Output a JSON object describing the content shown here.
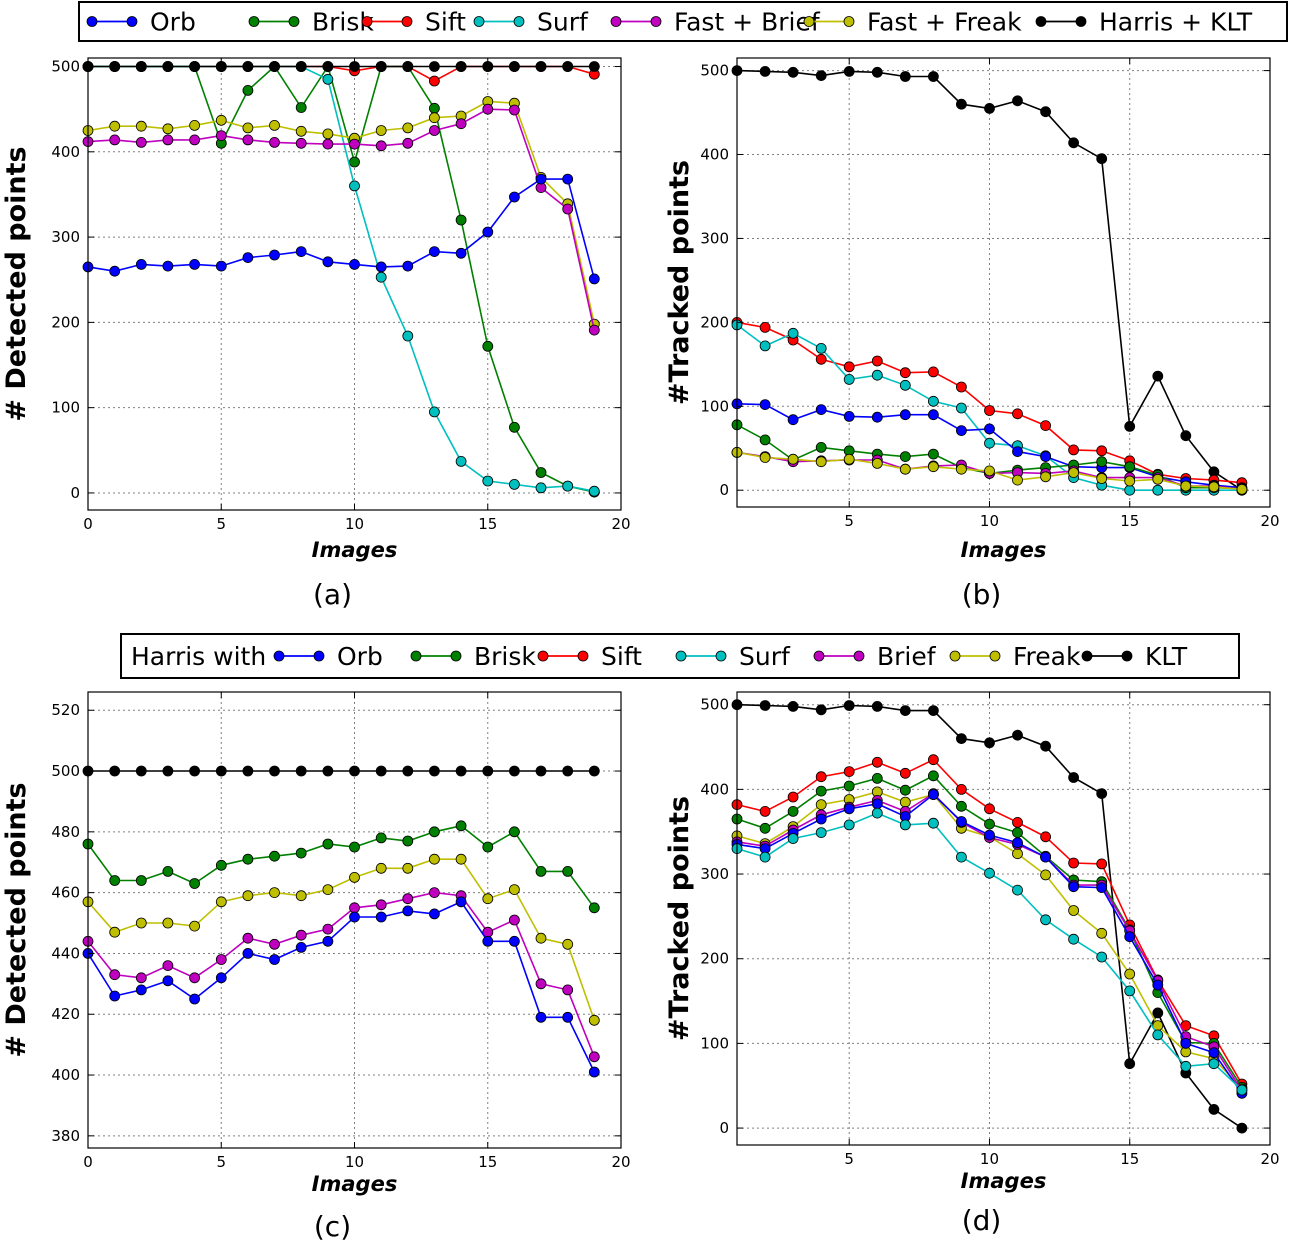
{
  "colors": {
    "Orb": "#0000ff",
    "Brisk": "#008000",
    "Sift": "#ff0000",
    "Surf": "#00bfbf",
    "Brief": "#bf00bf",
    "Freak": "#bfbf00",
    "KLT": "#000000"
  },
  "legend_top": {
    "entries": [
      {
        "label": "Orb",
        "color_key": "Orb"
      },
      {
        "label": "Brisk",
        "color_key": "Brisk"
      },
      {
        "label": "Sift",
        "color_key": "Sift"
      },
      {
        "label": "Surf",
        "color_key": "Surf"
      },
      {
        "label": "Fast + Brief",
        "color_key": "Brief"
      },
      {
        "label": "Fast + Freak",
        "color_key": "Freak"
      },
      {
        "label": "Harris + KLT",
        "color_key": "KLT"
      }
    ]
  },
  "legend_bottom": {
    "prefix": "Harris with",
    "entries": [
      {
        "label": "Orb",
        "color_key": "Orb"
      },
      {
        "label": "Brisk",
        "color_key": "Brisk"
      },
      {
        "label": "Sift",
        "color_key": "Sift"
      },
      {
        "label": "Surf",
        "color_key": "Surf"
      },
      {
        "label": "Brief",
        "color_key": "Brief"
      },
      {
        "label": "Freak",
        "color_key": "Freak"
      },
      {
        "label": "KLT",
        "color_key": "KLT"
      }
    ]
  },
  "chart_data": [
    {
      "id": "a",
      "type": "line",
      "caption": "(a)",
      "xlabel": "Images",
      "ylabel": "# Detected points",
      "xlim": [
        0,
        20
      ],
      "ylim": [
        -20,
        510
      ],
      "xticks": [
        0,
        5,
        10,
        15,
        20
      ],
      "yticks": [
        0,
        100,
        200,
        300,
        400,
        500
      ],
      "grid": true,
      "x": [
        0,
        1,
        2,
        3,
        4,
        5,
        6,
        7,
        8,
        9,
        10,
        11,
        12,
        13,
        14,
        15,
        16,
        17,
        18,
        19
      ],
      "series": [
        {
          "color_key": "Sift",
          "values": [
            500,
            500,
            500,
            500,
            500,
            500,
            500,
            500,
            500,
            500,
            495,
            500,
            500,
            483,
            500,
            500,
            500,
            500,
            500,
            491
          ]
        },
        {
          "color_key": "Brisk",
          "values": [
            500,
            500,
            500,
            500,
            500,
            410,
            472,
            500,
            452,
            500,
            388,
            500,
            500,
            451,
            320,
            172,
            77,
            24,
            8,
            1
          ]
        },
        {
          "color_key": "Surf",
          "values": [
            500,
            500,
            500,
            500,
            500,
            500,
            500,
            500,
            500,
            485,
            360,
            253,
            184,
            95,
            37,
            14,
            10,
            6,
            8,
            2
          ]
        },
        {
          "color_key": "Freak",
          "values": [
            425,
            430,
            430,
            427,
            431,
            437,
            428,
            431,
            424,
            421,
            416,
            425,
            428,
            440,
            442,
            459,
            457,
            370,
            339,
            198
          ]
        },
        {
          "color_key": "Brief",
          "values": [
            412,
            414,
            411,
            414,
            414,
            419,
            414,
            411,
            410,
            409,
            409,
            407,
            410,
            425,
            433,
            450,
            449,
            358,
            333,
            191
          ]
        },
        {
          "color_key": "Orb",
          "values": [
            265,
            260,
            268,
            266,
            268,
            266,
            276,
            279,
            283,
            271,
            268,
            265,
            266,
            283,
            281,
            306,
            347,
            368,
            368,
            251
          ]
        },
        {
          "color_key": "KLT",
          "values": [
            500,
            500,
            500,
            500,
            500,
            500,
            500,
            500,
            500,
            500,
            500,
            500,
            500,
            500,
            500,
            500,
            500,
            500,
            500,
            500
          ]
        }
      ]
    },
    {
      "id": "b",
      "type": "line",
      "caption": "(b)",
      "xlabel": "Images",
      "ylabel": "#Tracked points",
      "xlim": [
        1,
        20
      ],
      "ylim": [
        -20,
        515
      ],
      "xticks": [
        5,
        10,
        15,
        20
      ],
      "yticks": [
        0,
        100,
        200,
        300,
        400,
        500
      ],
      "grid": true,
      "x": [
        1,
        2,
        3,
        4,
        5,
        6,
        7,
        8,
        9,
        10,
        11,
        12,
        13,
        14,
        15,
        16,
        17,
        18,
        19
      ],
      "series": [
        {
          "color_key": "KLT",
          "values": [
            500,
            499,
            498,
            494,
            499,
            498,
            493,
            493,
            460,
            455,
            464,
            451,
            414,
            395,
            76,
            136,
            65,
            22,
            0
          ]
        },
        {
          "color_key": "Sift",
          "values": [
            200,
            194,
            179,
            156,
            147,
            154,
            140,
            141,
            123,
            95,
            91,
            77,
            48,
            47,
            35,
            19,
            14,
            12,
            9
          ]
        },
        {
          "color_key": "Surf",
          "values": [
            197,
            172,
            187,
            169,
            132,
            137,
            125,
            106,
            98,
            56,
            53,
            41,
            15,
            6,
            0,
            0,
            0,
            0,
            0
          ]
        },
        {
          "color_key": "Orb",
          "values": [
            103,
            102,
            84,
            96,
            88,
            87,
            90,
            90,
            71,
            73,
            46,
            40,
            28,
            27,
            27,
            16,
            10,
            6,
            3
          ]
        },
        {
          "color_key": "Brisk",
          "values": [
            78,
            60,
            36,
            51,
            47,
            43,
            40,
            43,
            27,
            20,
            24,
            27,
            30,
            34,
            28,
            18,
            3,
            3,
            2
          ]
        },
        {
          "color_key": "Brief",
          "values": [
            45,
            40,
            34,
            35,
            36,
            36,
            25,
            29,
            30,
            20,
            21,
            20,
            23,
            15,
            15,
            15,
            5,
            5,
            1
          ]
        },
        {
          "color_key": "Freak",
          "values": [
            45,
            39,
            37,
            34,
            37,
            32,
            25,
            28,
            25,
            23,
            12,
            16,
            21,
            14,
            11,
            13,
            5,
            4,
            1
          ]
        }
      ]
    },
    {
      "id": "c",
      "type": "line",
      "caption": "(c)",
      "xlabel": "Images",
      "ylabel": "# Detected points",
      "xlim": [
        0,
        20
      ],
      "ylim": [
        376,
        526
      ],
      "xticks": [
        0,
        5,
        10,
        15,
        20
      ],
      "yticks": [
        380,
        400,
        420,
        440,
        460,
        480,
        500,
        520
      ],
      "grid": true,
      "x": [
        0,
        1,
        2,
        3,
        4,
        5,
        6,
        7,
        8,
        9,
        10,
        11,
        12,
        13,
        14,
        15,
        16,
        17,
        18,
        19
      ],
      "series": [
        {
          "color_key": "KLT",
          "values": [
            500,
            500,
            500,
            500,
            500,
            500,
            500,
            500,
            500,
            500,
            500,
            500,
            500,
            500,
            500,
            500,
            500,
            500,
            500,
            500
          ]
        },
        {
          "color_key": "Brisk",
          "values": [
            476,
            464,
            464,
            467,
            463,
            469,
            471,
            472,
            473,
            476,
            475,
            478,
            477,
            480,
            482,
            475,
            480,
            467,
            467,
            455
          ]
        },
        {
          "color_key": "Freak",
          "values": [
            457,
            447,
            450,
            450,
            449,
            457,
            459,
            460,
            459,
            461,
            465,
            468,
            468,
            471,
            471,
            458,
            461,
            445,
            443,
            418
          ]
        },
        {
          "color_key": "Brief",
          "values": [
            444,
            433,
            432,
            436,
            432,
            438,
            445,
            443,
            446,
            448,
            455,
            456,
            458,
            460,
            459,
            447,
            451,
            430,
            428,
            406
          ]
        },
        {
          "color_key": "Orb",
          "values": [
            440,
            426,
            428,
            431,
            425,
            432,
            440,
            438,
            442,
            444,
            452,
            452,
            454,
            453,
            457,
            444,
            444,
            419,
            419,
            401
          ]
        }
      ]
    },
    {
      "id": "d",
      "type": "line",
      "caption": "(d)",
      "xlabel": "Images",
      "ylabel": "#Tracked points",
      "xlim": [
        1,
        20
      ],
      "ylim": [
        -20,
        515
      ],
      "xticks": [
        5,
        10,
        15,
        20
      ],
      "yticks": [
        0,
        100,
        200,
        300,
        400,
        500
      ],
      "grid": true,
      "x": [
        1,
        2,
        3,
        4,
        5,
        6,
        7,
        8,
        9,
        10,
        11,
        12,
        13,
        14,
        15,
        16,
        17,
        18,
        19
      ],
      "series": [
        {
          "color_key": "KLT",
          "values": [
            500,
            499,
            498,
            494,
            499,
            498,
            493,
            493,
            460,
            455,
            464,
            451,
            414,
            395,
            76,
            136,
            65,
            22,
            0
          ]
        },
        {
          "color_key": "Sift",
          "values": [
            382,
            374,
            391,
            415,
            421,
            432,
            419,
            435,
            400,
            377,
            361,
            344,
            313,
            312,
            240,
            175,
            121,
            109,
            52
          ]
        },
        {
          "color_key": "Brisk",
          "values": [
            365,
            354,
            374,
            398,
            404,
            413,
            399,
            416,
            380,
            359,
            349,
            321,
            293,
            291,
            234,
            160,
            101,
            100,
            48
          ]
        },
        {
          "color_key": "Freak",
          "values": [
            345,
            336,
            356,
            382,
            388,
            397,
            385,
            394,
            354,
            344,
            324,
            299,
            257,
            230,
            182,
            121,
            90,
            82,
            46
          ]
        },
        {
          "color_key": "Brief",
          "values": [
            338,
            333,
            352,
            370,
            379,
            387,
            374,
            395,
            361,
            343,
            335,
            320,
            287,
            287,
            233,
            174,
            108,
            96,
            44
          ]
        },
        {
          "color_key": "Orb",
          "values": [
            335,
            330,
            348,
            365,
            377,
            383,
            368,
            394,
            362,
            346,
            337,
            320,
            285,
            284,
            226,
            169,
            100,
            89,
            41
          ]
        },
        {
          "color_key": "Surf",
          "values": [
            330,
            320,
            342,
            349,
            358,
            372,
            358,
            360,
            320,
            301,
            281,
            246,
            223,
            202,
            162,
            110,
            73,
            76,
            45
          ]
        }
      ]
    }
  ]
}
